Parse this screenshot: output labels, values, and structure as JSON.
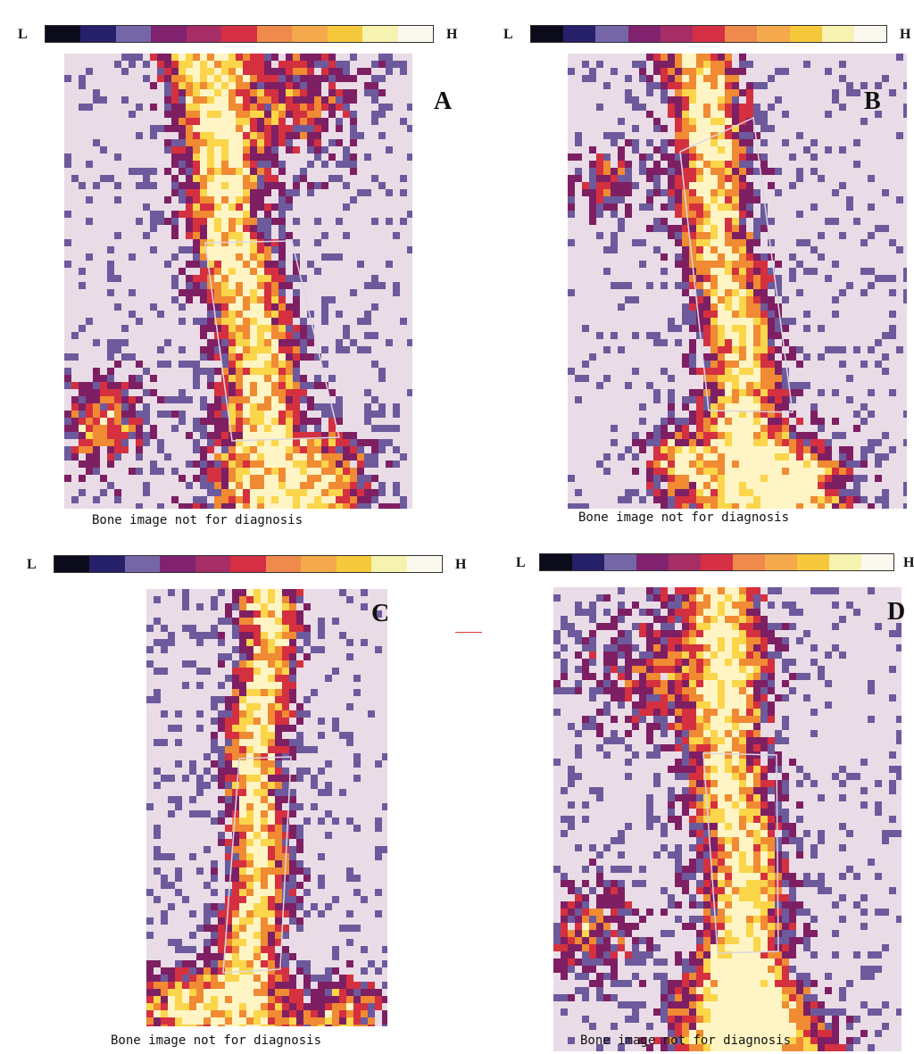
{
  "scale": {
    "low_label": "L",
    "high_label": "H",
    "colors": [
      "#0c0b1c",
      "#26206a",
      "#7566a8",
      "#80226e",
      "#a72d66",
      "#d42f45",
      "#ef8a4c",
      "#f4aa4c",
      "#f6c83c",
      "#f6f2b0",
      "#fbf8ee"
    ]
  },
  "palette": {
    "background": "#e9dce6",
    "low": "#6d5a9c",
    "mid": "#7e1f63",
    "warm": "#d5303f",
    "hot": "#f08a33",
    "peak": "#fbd54a",
    "max": "#fff5c4"
  },
  "panels": [
    {
      "letter": "A",
      "caption": "Bone image not for diagnosis"
    },
    {
      "letter": "B",
      "caption": "Bone image not for diagnosis"
    },
    {
      "letter": "C",
      "caption": "Bone image not for diagnosis"
    },
    {
      "letter": "D",
      "caption": "Bone image not for diagnosis"
    }
  ]
}
